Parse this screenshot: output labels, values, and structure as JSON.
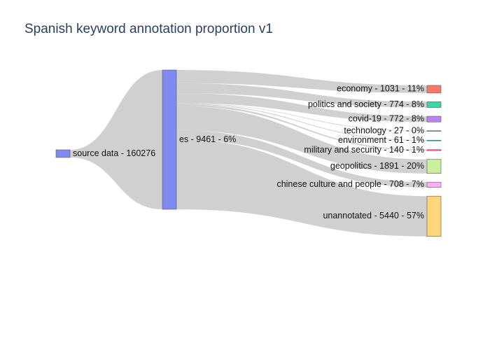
{
  "chart_data": {
    "type": "sankey",
    "title": "Spanish keyword annotation proportion v1",
    "nodes": [
      {
        "id": "source",
        "label": "source data - 160276",
        "color": "#8089f0"
      },
      {
        "id": "es",
        "label": "es - 9461 - 6%",
        "color": "#8089f0"
      },
      {
        "id": "economy",
        "label": "economy - 1031 - 11%",
        "color": "#f47b67"
      },
      {
        "id": "politics",
        "label": "politics and society - 774 - 8%",
        "color": "#3dd6a8"
      },
      {
        "id": "covid",
        "label": "covid-19 - 772 - 8%",
        "color": "#b884f0"
      },
      {
        "id": "technology",
        "label": "technology - 27 - 0%",
        "color": "#ffa15a"
      },
      {
        "id": "environment",
        "label": "environment - 61 - 1%",
        "color": "#19d3f3"
      },
      {
        "id": "military",
        "label": "military and security - 140 - 1%",
        "color": "#ff6692"
      },
      {
        "id": "geopolitics",
        "label": "geopolitics - 1891 - 20%",
        "color": "#c9ee9c"
      },
      {
        "id": "chinese",
        "label": "chinese culture and people - 708 - 7%",
        "color": "#fdb0fa"
      },
      {
        "id": "unannotated",
        "label": "unannotated - 5440 - 57%",
        "color": "#fed57a"
      }
    ],
    "links": [
      {
        "source": "source",
        "target": "es",
        "value": 9461
      },
      {
        "source": "es",
        "target": "economy",
        "value": 1031
      },
      {
        "source": "es",
        "target": "politics",
        "value": 774
      },
      {
        "source": "es",
        "target": "covid",
        "value": 772
      },
      {
        "source": "es",
        "target": "technology",
        "value": 27
      },
      {
        "source": "es",
        "target": "environment",
        "value": 61
      },
      {
        "source": "es",
        "target": "military",
        "value": 140
      },
      {
        "source": "es",
        "target": "geopolitics",
        "value": 1891
      },
      {
        "source": "es",
        "target": "chinese",
        "value": 708
      },
      {
        "source": "es",
        "target": "unannotated",
        "value": 5440
      }
    ],
    "link_color": "#c8c8c8"
  }
}
